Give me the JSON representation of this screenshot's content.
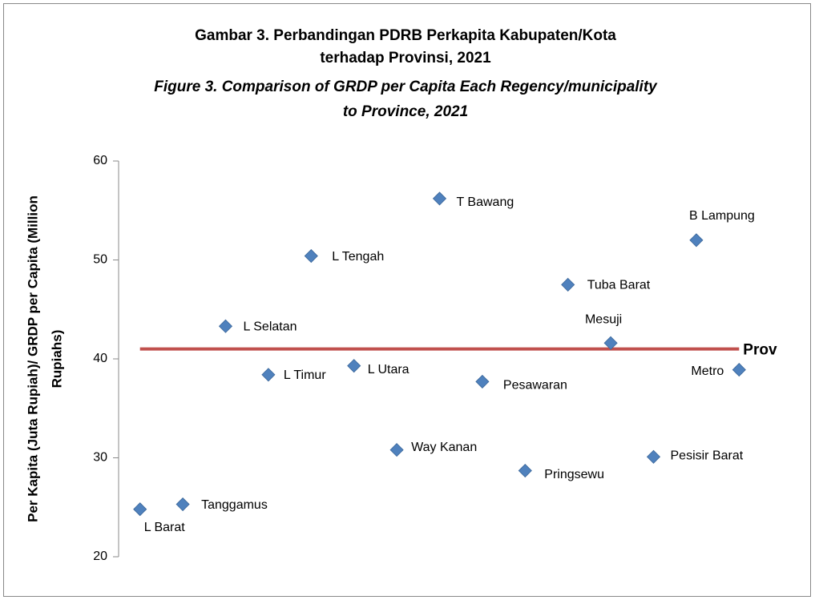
{
  "chart_data": {
    "type": "scatter",
    "title": [
      "Gambar 3. Perbandingan PDRB Perkapita Kabupaten/Kota",
      "terhadap Provinsi, 2021"
    ],
    "subtitle": [
      "Figure 3. Comparison of GRDP per Capita Each Regency/municipality",
      "to Province, 2021"
    ],
    "ylabel": [
      "Per Kapita (Juta Rupiah)/ GRDP per Capita (Million",
      "Rupiahs)"
    ],
    "categories": [
      "L Barat",
      "Tanggamus",
      "L Selatan",
      "L Timur",
      "L Tengah",
      "L Utara",
      "Way Kanan",
      "T Bawang",
      "Pesawaran",
      "Pringsewu",
      "Tuba Barat",
      "Mesuji",
      "Pesisir Barat",
      "B Lampung",
      "Metro"
    ],
    "values": [
      24.8,
      25.3,
      43.3,
      38.4,
      50.4,
      39.3,
      30.8,
      56.2,
      37.7,
      28.7,
      47.5,
      41.6,
      30.1,
      52.0,
      38.9
    ],
    "color": "#4f81bd",
    "reference_line": {
      "name": "Prov",
      "value": 41.0,
      "color": "#c0504d"
    },
    "ylim": [
      20,
      60
    ],
    "yticks": [
      20,
      30,
      40,
      50,
      60
    ],
    "grid": false
  }
}
